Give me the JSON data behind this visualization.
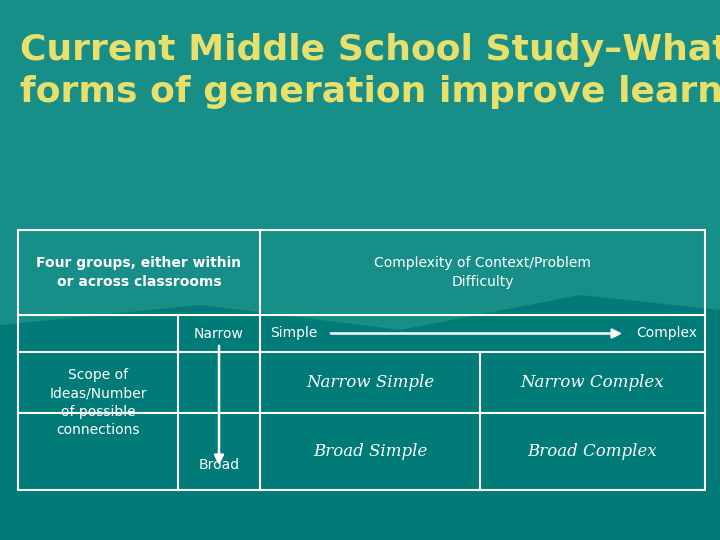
{
  "title_line1": "Current Middle School Study–What",
  "title_line2": "forms of generation improve learning?",
  "title_color": "#E8E06A",
  "bg_color": "#007B77",
  "bg_color_top": "#1A8F88",
  "border_color": "white",
  "text_color": "white",
  "cell_four_groups": "Four groups, either within\nor across classrooms",
  "cell_complexity": "Complexity of Context/Problem\nDifficulty",
  "cell_simple": "Simple",
  "cell_complex": "Complex",
  "cell_scope": "Scope of\nIdeas/Number\nof possible\nconnections",
  "cell_narrow": "Narrow",
  "cell_broad": "Broad",
  "cell_narrow_simple": "Narrow Simple",
  "cell_narrow_complex": "Narrow Complex",
  "cell_broad_simple": "Broad Simple",
  "cell_broad_complex": "Broad Complex",
  "title_fontsize": 26,
  "table_text_fontsize": 10,
  "italic_fontsize": 12
}
